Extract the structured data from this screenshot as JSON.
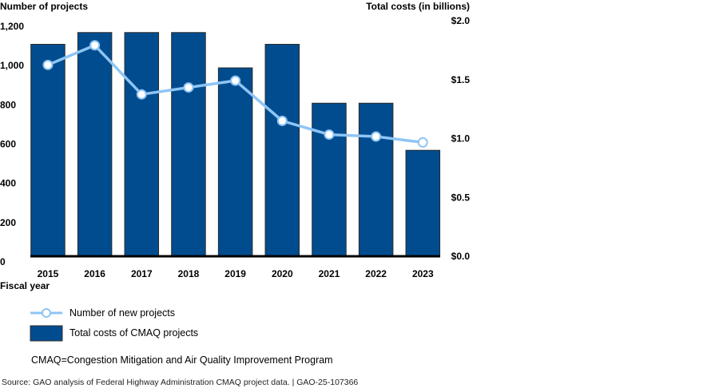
{
  "chart_data": {
    "type": "bar+line",
    "categories": [
      "2015",
      "2016",
      "2017",
      "2018",
      "2019",
      "2020",
      "2021",
      "2022",
      "2023"
    ],
    "xlabel": "Fiscal year",
    "left_axis": {
      "label": "Number of projects",
      "range": [
        0,
        1200
      ],
      "ticks": [
        0,
        200,
        400,
        600,
        800,
        1000,
        1200
      ],
      "tick_labels": [
        "0",
        "200",
        "400",
        "600",
        "800",
        "1,000",
        "1,200"
      ]
    },
    "right_axis": {
      "label": "Total costs (in billions)",
      "range": [
        0,
        2.0
      ],
      "ticks": [
        0,
        0.5,
        1.0,
        1.5,
        2.0
      ],
      "tick_labels": [
        "$0.0",
        "$0.5",
        "$1.0",
        "$1.5",
        "$2.0"
      ]
    },
    "series": [
      {
        "name": "Total costs of CMAQ projects",
        "type": "bar",
        "axis": "right",
        "color": "#004C8F",
        "values": [
          1.8,
          1.9,
          1.9,
          1.9,
          1.6,
          1.8,
          1.3,
          1.3,
          0.9
        ]
      },
      {
        "name": "Number of new projects",
        "type": "line",
        "axis": "left",
        "color": "#8EC5F5",
        "values": [
          975,
          1075,
          825,
          860,
          895,
          690,
          620,
          610,
          580
        ]
      }
    ],
    "grid": false,
    "legend_position": "bottom-left"
  },
  "legend": {
    "line_label": "Number of new projects",
    "bar_label": "Total costs of CMAQ projects"
  },
  "note": "CMAQ=Congestion Mitigation and Air Quality Improvement Program",
  "source": "Source: GAO analysis of Federal Highway Administration CMAQ project data.  |  GAO-25-107366"
}
